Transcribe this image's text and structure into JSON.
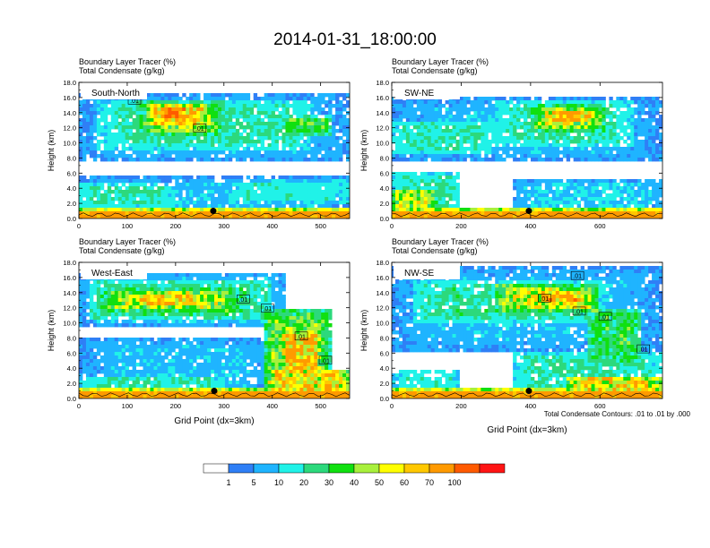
{
  "figure": {
    "title": "2014-01-31_18:00:00",
    "contour_note": "Total Condensate Contours: .01 to .01 by .000"
  },
  "colorbar": {
    "colors": [
      "#ffffff",
      "#2f7ff6",
      "#1fb4ff",
      "#20f2e8",
      "#2cd97c",
      "#10e010",
      "#a8f03c",
      "#ffff00",
      "#ffc800",
      "#ff9a00",
      "#ff5a00",
      "#ff1414"
    ],
    "labels": [
      "1",
      "5",
      "10",
      "20",
      "30",
      "40",
      "50",
      "60",
      "70",
      "100"
    ]
  },
  "chart_data": [
    {
      "type": "heatmap",
      "panel_label": "South-North",
      "subtitle_line1": "Boundary Layer Tracer   (%)",
      "subtitle_line2": "Total Condensate   (g/kg)",
      "ylabel": "Height (km)",
      "xlabel": "",
      "xlim": [
        0,
        560
      ],
      "ylim": [
        0,
        18
      ],
      "xticks": [
        0,
        100,
        200,
        300,
        400,
        500
      ],
      "xtick_labels": [
        "0",
        "100",
        "200",
        "300",
        "400",
        "500"
      ],
      "yticks": [
        0,
        2,
        4,
        6,
        8,
        10,
        12,
        14,
        16,
        18
      ],
      "ytick_labels": [
        "0.0",
        "2.0",
        "4.0",
        "6.0",
        "8.0",
        "10.0",
        "12.0",
        "14.0",
        "16.0",
        "18.0"
      ],
      "contour_labels": [
        {
          "text": ".01",
          "x": 115,
          "y": 15.6
        },
        {
          "text": ".01",
          "x": 250,
          "y": 11.9
        }
      ],
      "marker": {
        "x": 278,
        "y": 1.0
      },
      "field": {
        "anvil": [
          {
            "x": [
              0,
              560
            ],
            "y": [
              7.5,
              16.5
            ],
            "v": 8
          },
          {
            "x": [
              40,
              480
            ],
            "y": [
              9.0,
              15.5
            ],
            "v": 20
          },
          {
            "x": [
              120,
              300
            ],
            "y": [
              11.0,
              15.5
            ],
            "v": 40
          },
          {
            "x": [
              140,
              270
            ],
            "y": [
              12.0,
              15.2
            ],
            "v": 65
          },
          {
            "x": [
              160,
              230
            ],
            "y": [
              13.0,
              14.8
            ],
            "v": 85
          },
          {
            "x": [
              420,
              520
            ],
            "y": [
              11.0,
              13.5
            ],
            "v": 35
          }
        ],
        "low": [
          {
            "x": [
              0,
              560
            ],
            "y": [
              0.3,
              5.5
            ],
            "v": 8
          },
          {
            "x": [
              0,
              200
            ],
            "y": [
              1.5,
              4.5
            ],
            "v": 20
          },
          {
            "x": [
              300,
              560
            ],
            "y": [
              2.0,
              5.0
            ],
            "v": 15
          }
        ],
        "pbl_max": 100
      }
    },
    {
      "type": "heatmap",
      "panel_label": "SW-NE",
      "subtitle_line1": "Boundary Layer Tracer   (%)",
      "subtitle_line2": "Total Condensate   (g/kg)",
      "ylabel": "Height (km)",
      "xlabel": "",
      "xlim": [
        0,
        780
      ],
      "ylim": [
        0,
        18
      ],
      "xticks": [
        0,
        200,
        400,
        600
      ],
      "xtick_labels": [
        "0",
        "200",
        "400",
        "600"
      ],
      "yticks": [
        0,
        2,
        4,
        6,
        8,
        10,
        12,
        14,
        16,
        18
      ],
      "ytick_labels": [
        "0.0",
        "2.0",
        "4.0",
        "6.0",
        "8.0",
        "10.0",
        "12.0",
        "14.0",
        "16.0",
        "18.0"
      ],
      "contour_labels": [],
      "marker": {
        "x": 395,
        "y": 1.0
      },
      "field": {
        "anvil": [
          {
            "x": [
              0,
              780
            ],
            "y": [
              7.5,
              16.0
            ],
            "v": 8
          },
          {
            "x": [
              300,
              700
            ],
            "y": [
              9.5,
              15.5
            ],
            "v": 20
          },
          {
            "x": [
              400,
              620
            ],
            "y": [
              11.5,
              15.0
            ],
            "v": 45
          },
          {
            "x": [
              440,
              580
            ],
            "y": [
              12.5,
              14.5
            ],
            "v": 70
          },
          {
            "x": [
              0,
              300
            ],
            "y": [
              8.5,
              13.0
            ],
            "v": 18
          }
        ],
        "low": [
          {
            "x": [
              0,
              200
            ],
            "y": [
              0.5,
              6.0
            ],
            "v": 20
          },
          {
            "x": [
              0,
              130
            ],
            "y": [
              1.0,
              4.0
            ],
            "v": 45
          },
          {
            "x": [
              350,
              780
            ],
            "y": [
              0.5,
              5.0
            ],
            "v": 10
          }
        ],
        "pbl_max": 100
      }
    },
    {
      "type": "heatmap",
      "panel_label": "West-East",
      "subtitle_line1": "Boundary Layer Tracer   (%)",
      "subtitle_line2": "Total Condensate   (g/kg)",
      "ylabel": "Height (km)",
      "xlabel": "Grid Point (dx=3km)",
      "xlim": [
        0,
        560
      ],
      "ylim": [
        0,
        18
      ],
      "xticks": [
        0,
        100,
        200,
        300,
        400,
        500
      ],
      "xtick_labels": [
        "0",
        "100",
        "200",
        "300",
        "400",
        "500"
      ],
      "yticks": [
        0,
        2,
        4,
        6,
        8,
        10,
        12,
        14,
        16,
        18
      ],
      "ytick_labels": [
        "0.0",
        "2.0",
        "4.0",
        "6.0",
        "8.0",
        "10.0",
        "12.0",
        "14.0",
        "16.0",
        "18.0"
      ],
      "contour_labels": [
        {
          "text": ".01",
          "x": 340,
          "y": 13.1
        },
        {
          "text": ".01",
          "x": 390,
          "y": 11.9
        },
        {
          "text": ".01",
          "x": 460,
          "y": 8.2
        },
        {
          "text": ".01",
          "x": 510,
          "y": 5.0
        }
      ],
      "marker": {
        "x": 280,
        "y": 1.0
      },
      "field": {
        "anvil": [
          {
            "x": [
              0,
              430
            ],
            "y": [
              9.5,
              16.5
            ],
            "v": 10
          },
          {
            "x": [
              20,
              400
            ],
            "y": [
              10.5,
              15.5
            ],
            "v": 25
          },
          {
            "x": [
              40,
              330
            ],
            "y": [
              11.5,
              14.5
            ],
            "v": 45
          },
          {
            "x": [
              110,
              250
            ],
            "y": [
              12.3,
              14.0
            ],
            "v": 70
          },
          {
            "x": [
              380,
              520
            ],
            "y": [
              2.0,
              12.0
            ],
            "v": 40
          },
          {
            "x": [
              420,
              500
            ],
            "y": [
              3.0,
              9.0
            ],
            "v": 70
          }
        ],
        "low": [
          {
            "x": [
              0,
              420
            ],
            "y": [
              0.3,
              8.0
            ],
            "v": 8
          },
          {
            "x": [
              0,
              300
            ],
            "y": [
              0.5,
              3.0
            ],
            "v": 20
          },
          {
            "x": [
              380,
              560
            ],
            "y": [
              0.3,
              4.0
            ],
            "v": 60
          }
        ],
        "pbl_max": 100
      }
    },
    {
      "type": "heatmap",
      "panel_label": "NW-SE",
      "subtitle_line1": "Boundary Layer Tracer   (%)",
      "subtitle_line2": "Total Condensate   (g/kg)",
      "ylabel": "Height (km)",
      "xlabel": "Grid Point (dx=3km)",
      "xlim": [
        0,
        780
      ],
      "ylim": [
        0,
        18
      ],
      "xticks": [
        0,
        200,
        400,
        600
      ],
      "xtick_labels": [
        "0",
        "200",
        "400",
        "600"
      ],
      "yticks": [
        0,
        2,
        4,
        6,
        8,
        10,
        12,
        14,
        16,
        18
      ],
      "ytick_labels": [
        "0.0",
        "2.0",
        "4.0",
        "6.0",
        "8.0",
        "10.0",
        "12.0",
        "14.0",
        "16.0",
        "18.0"
      ],
      "contour_labels": [
        {
          "text": ".01",
          "x": 440,
          "y": 13.2
        },
        {
          "text": ".01",
          "x": 535,
          "y": 16.2
        },
        {
          "text": ".01",
          "x": 540,
          "y": 11.5
        },
        {
          "text": ".01",
          "x": 615,
          "y": 10.8
        },
        {
          "text": ".01",
          "x": 725,
          "y": 6.5
        }
      ],
      "marker": {
        "x": 395,
        "y": 1.0
      },
      "field": {
        "anvil": [
          {
            "x": [
              0,
              780
            ],
            "y": [
              6.0,
              17.5
            ],
            "v": 8
          },
          {
            "x": [
              60,
              620
            ],
            "y": [
              10.0,
              15.5
            ],
            "v": 22
          },
          {
            "x": [
              300,
              600
            ],
            "y": [
              11.5,
              15.0
            ],
            "v": 50
          },
          {
            "x": [
              420,
              560
            ],
            "y": [
              12.5,
              14.5
            ],
            "v": 75
          },
          {
            "x": [
              560,
              720
            ],
            "y": [
              4.0,
              12.0
            ],
            "v": 30
          }
        ],
        "low": [
          {
            "x": [
              0,
              200
            ],
            "y": [
              0.5,
              4.0
            ],
            "v": 15
          },
          {
            "x": [
              350,
              780
            ],
            "y": [
              0.3,
              6.0
            ],
            "v": 20
          },
          {
            "x": [
              500,
              780
            ],
            "y": [
              0.3,
              3.0
            ],
            "v": 60
          }
        ],
        "pbl_max": 100
      }
    }
  ]
}
